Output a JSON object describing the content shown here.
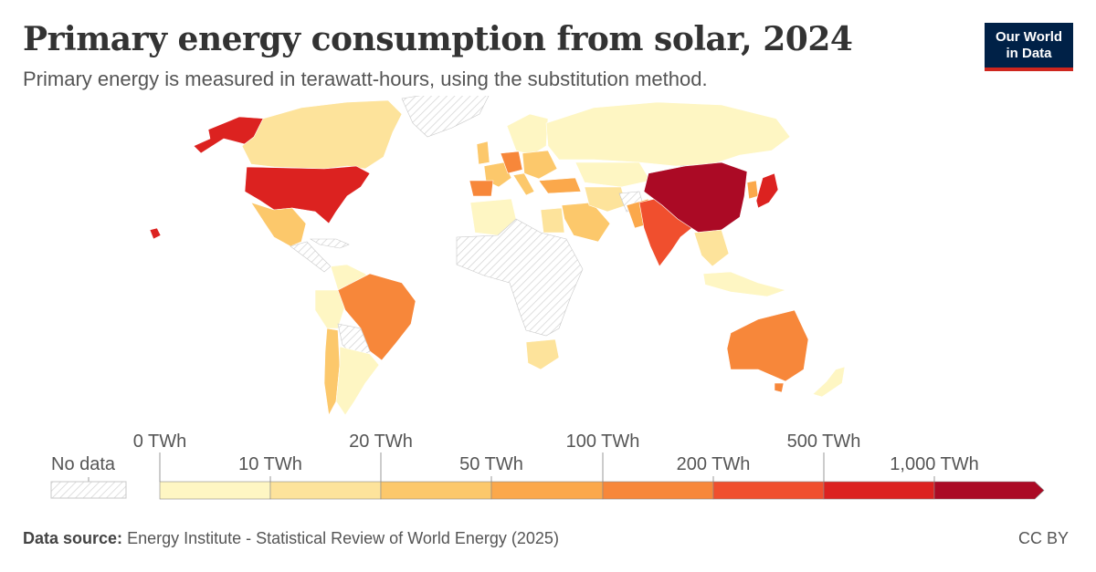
{
  "header": {
    "title": "Primary energy consumption from solar, 2024",
    "subtitle": "Primary energy is measured in terawatt-hours, using the substitution method."
  },
  "logo": {
    "line1": "Our World",
    "line2": "in Data"
  },
  "legend": {
    "no_data_label": "No data",
    "upper_ticks": [
      "0 TWh",
      "20 TWh",
      "100 TWh",
      "500 TWh"
    ],
    "lower_ticks": [
      "10 TWh",
      "50 TWh",
      "200 TWh",
      "1,000 TWh"
    ],
    "colors": [
      "#fef6c3",
      "#fde39b",
      "#fcc86b",
      "#fba84b",
      "#f7873a",
      "#f04f2e",
      "#dc2220",
      "#ab0a25"
    ]
  },
  "colors": {
    "no_data_stroke": "#c9c9c9",
    "background": "#ffffff"
  },
  "footer": {
    "source_label": "Data source:",
    "source_text": "Energy Institute - Statistical Review of World Energy (2025)",
    "license": "CC BY"
  }
}
